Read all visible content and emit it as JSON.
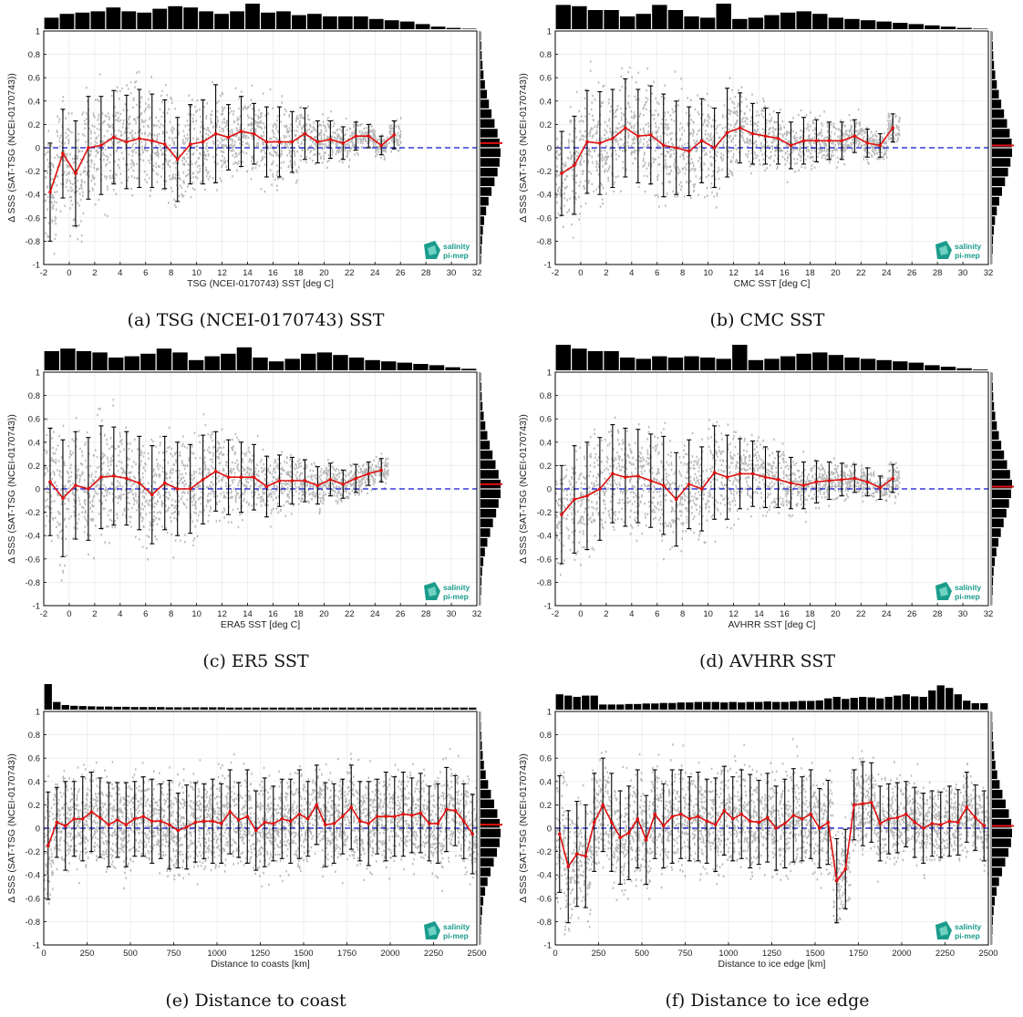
{
  "figure": {
    "logo": {
      "line1": "salinity",
      "line2": "pi-mep",
      "color": "#1a9c8c"
    },
    "ylabel": "Δ SSS (SAT-TSG (NCEI-0170743))",
    "ylim": [
      -1,
      1
    ],
    "yticks": [
      "-1",
      "-0.8",
      "-0.6",
      "-0.4",
      "-0.2",
      "0",
      "0.2",
      "0.4",
      "0.6",
      "0.8",
      "1"
    ],
    "colors": {
      "mean_line": "#e01010",
      "zero_line": "#1010d0",
      "error_bars": "#000000",
      "scatter": "#808080",
      "histogram": "#000000",
      "median_mark": "#e01010"
    }
  },
  "chart_data": [
    {
      "type": "scatter",
      "caption": "(a) TSG (NCEI-0170743) SST",
      "xlabel": "TSG (NCEI-0170743) SST [deg C]",
      "xlim": [
        -2,
        32
      ],
      "xticks": [
        "-2",
        "0",
        "2",
        "4",
        "6",
        "8",
        "10",
        "12",
        "14",
        "16",
        "18",
        "20",
        "22",
        "24",
        "26",
        "28",
        "30",
        "32"
      ],
      "ylabel": "Δ SSS (SAT-TSG (NCEI-0170743))",
      "ylim": [
        -1,
        1
      ],
      "x": [
        -1.5,
        -0.5,
        0.5,
        1.5,
        2.5,
        3.5,
        4.5,
        5.5,
        6.5,
        7.5,
        8.5,
        9.5,
        10.5,
        11.5,
        12.5,
        13.5,
        14.5,
        15.5,
        16.5,
        17.5,
        18.5,
        19.5,
        20.5,
        21.5,
        22.5,
        23.5,
        24.5,
        25.5
      ],
      "mean": [
        -0.38,
        -0.05,
        -0.22,
        0.0,
        0.02,
        0.09,
        0.05,
        0.08,
        0.06,
        0.03,
        -0.1,
        0.03,
        0.05,
        0.12,
        0.09,
        0.14,
        0.12,
        0.05,
        0.05,
        0.05,
        0.12,
        0.05,
        0.07,
        0.04,
        0.1,
        0.1,
        0.02,
        0.11
      ],
      "std": [
        0.42,
        0.38,
        0.45,
        0.44,
        0.42,
        0.4,
        0.4,
        0.42,
        0.4,
        0.38,
        0.36,
        0.34,
        0.36,
        0.42,
        0.28,
        0.3,
        0.26,
        0.3,
        0.3,
        0.26,
        0.22,
        0.18,
        0.16,
        0.14,
        0.12,
        0.1,
        0.08,
        0.12
      ],
      "hist_x": [
        0.45,
        0.6,
        0.65,
        0.7,
        0.85,
        0.7,
        0.65,
        0.8,
        0.9,
        0.85,
        0.7,
        0.6,
        0.7,
        1.0,
        0.65,
        0.7,
        0.55,
        0.6,
        0.5,
        0.5,
        0.5,
        0.4,
        0.35,
        0.3,
        0.2,
        0.1,
        0.05,
        0.02
      ],
      "hist_y": [
        0.02,
        0.04,
        0.06,
        0.1,
        0.15,
        0.22,
        0.32,
        0.42,
        0.55,
        0.7,
        0.85,
        0.95,
        1.0,
        0.95,
        0.85,
        0.7,
        0.55,
        0.4,
        0.28,
        0.18,
        0.12,
        0.08,
        0.05,
        0.03
      ],
      "median_mark": 0.04
    },
    {
      "type": "scatter",
      "caption": "(b) CMC SST",
      "xlabel": "CMC SST [deg C]",
      "xlim": [
        -2,
        32
      ],
      "xticks": [
        "-2",
        "0",
        "2",
        "4",
        "6",
        "8",
        "10",
        "12",
        "14",
        "16",
        "18",
        "20",
        "22",
        "24",
        "26",
        "28",
        "30",
        "32"
      ],
      "ylabel": "Δ SSS (SAT-TSG (NCEI-0170743))",
      "ylim": [
        -1,
        1
      ],
      "x": [
        -1.5,
        -0.5,
        0.5,
        1.5,
        2.5,
        3.5,
        4.5,
        5.5,
        6.5,
        7.5,
        8.5,
        9.5,
        10.5,
        11.5,
        12.5,
        13.5,
        14.5,
        15.5,
        16.5,
        17.5,
        18.5,
        19.5,
        20.5,
        21.5,
        22.5,
        23.5,
        24.5
      ],
      "mean": [
        -0.22,
        -0.15,
        0.05,
        0.04,
        0.08,
        0.17,
        0.1,
        0.11,
        0.02,
        0.0,
        -0.03,
        0.06,
        0.0,
        0.13,
        0.17,
        0.12,
        0.1,
        0.08,
        0.02,
        0.06,
        0.06,
        0.06,
        0.06,
        0.1,
        0.04,
        0.02,
        0.17
      ],
      "std": [
        0.36,
        0.42,
        0.44,
        0.44,
        0.42,
        0.42,
        0.4,
        0.42,
        0.44,
        0.4,
        0.38,
        0.36,
        0.34,
        0.38,
        0.3,
        0.26,
        0.24,
        0.22,
        0.2,
        0.2,
        0.18,
        0.16,
        0.16,
        0.14,
        0.12,
        0.1,
        0.12
      ],
      "hist_x": [
        0.95,
        0.9,
        0.75,
        0.75,
        0.5,
        0.6,
        0.95,
        0.75,
        0.5,
        0.45,
        1.0,
        0.4,
        0.45,
        0.55,
        0.65,
        0.7,
        0.6,
        0.45,
        0.4,
        0.35,
        0.3,
        0.25,
        0.2,
        0.15,
        0.1,
        0.05,
        0.02
      ],
      "hist_y": [
        0.02,
        0.04,
        0.06,
        0.1,
        0.16,
        0.24,
        0.34,
        0.46,
        0.6,
        0.75,
        0.88,
        0.98,
        1.0,
        0.92,
        0.8,
        0.65,
        0.5,
        0.36,
        0.24,
        0.15,
        0.09,
        0.05,
        0.03,
        0.01
      ],
      "median_mark": 0.02
    },
    {
      "type": "scatter",
      "caption": "(c) ER5 SST",
      "xlabel": "ERA5 SST [deg C]",
      "xlim": [
        -2,
        32
      ],
      "xticks": [
        "-2",
        "0",
        "2",
        "4",
        "6",
        "8",
        "10",
        "12",
        "14",
        "16",
        "18",
        "20",
        "22",
        "24",
        "26",
        "28",
        "30",
        "32"
      ],
      "ylabel": "Δ SSS (SAT-TSG (NCEI-0170743))",
      "ylim": [
        -1,
        1
      ],
      "x": [
        -1.5,
        -0.5,
        0.5,
        1.5,
        2.5,
        3.5,
        4.5,
        5.5,
        6.5,
        7.5,
        8.5,
        9.5,
        10.5,
        11.5,
        12.5,
        13.5,
        14.5,
        15.5,
        16.5,
        17.5,
        18.5,
        19.5,
        20.5,
        21.5,
        22.5,
        23.5,
        24.5
      ],
      "mean": [
        0.06,
        -0.08,
        0.03,
        0.0,
        0.1,
        0.11,
        0.09,
        0.05,
        -0.05,
        0.05,
        0.0,
        0.0,
        0.08,
        0.15,
        0.1,
        0.1,
        0.1,
        0.02,
        0.07,
        0.07,
        0.07,
        0.03,
        0.08,
        0.04,
        0.09,
        0.13,
        0.16
      ],
      "std": [
        0.46,
        0.5,
        0.46,
        0.44,
        0.44,
        0.42,
        0.4,
        0.4,
        0.42,
        0.4,
        0.4,
        0.38,
        0.38,
        0.34,
        0.32,
        0.3,
        0.28,
        0.26,
        0.22,
        0.2,
        0.18,
        0.16,
        0.14,
        0.12,
        0.12,
        0.1,
        0.1
      ],
      "hist_x": [
        0.75,
        0.85,
        0.75,
        0.7,
        0.5,
        0.55,
        0.65,
        0.85,
        0.7,
        0.4,
        0.55,
        0.65,
        0.9,
        0.5,
        0.35,
        0.45,
        0.65,
        0.7,
        0.6,
        0.5,
        0.4,
        0.35,
        0.3,
        0.25,
        0.2,
        0.12,
        0.06
      ],
      "hist_y": [
        0.02,
        0.04,
        0.06,
        0.1,
        0.16,
        0.24,
        0.34,
        0.46,
        0.6,
        0.75,
        0.9,
        1.0,
        1.0,
        0.9,
        0.78,
        0.62,
        0.48,
        0.34,
        0.22,
        0.14,
        0.08,
        0.05,
        0.03,
        0.01
      ],
      "median_mark": 0.04
    },
    {
      "type": "scatter",
      "caption": "(d) AVHRR SST",
      "xlabel": "AVHRR SST [deg C]",
      "xlim": [
        -2,
        32
      ],
      "xticks": [
        "-2",
        "0",
        "2",
        "4",
        "6",
        "8",
        "10",
        "12",
        "14",
        "16",
        "18",
        "20",
        "22",
        "24",
        "26",
        "28",
        "30",
        "32"
      ],
      "ylabel": "Δ SSS (SAT-TSG (NCEI-0170743))",
      "ylim": [
        -1,
        1
      ],
      "x": [
        -1.5,
        -0.5,
        0.5,
        1.5,
        2.5,
        3.5,
        4.5,
        5.5,
        6.5,
        7.5,
        8.5,
        9.5,
        10.5,
        11.5,
        12.5,
        13.5,
        14.5,
        15.5,
        16.5,
        17.5,
        18.5,
        19.5,
        20.5,
        21.5,
        22.5,
        23.5,
        24.5
      ],
      "mean": [
        -0.22,
        -0.09,
        -0.06,
        0.0,
        0.13,
        0.1,
        0.11,
        0.07,
        0.03,
        -0.09,
        0.04,
        0.0,
        0.14,
        0.1,
        0.13,
        0.13,
        0.1,
        0.08,
        0.05,
        0.03,
        0.06,
        0.07,
        0.08,
        0.09,
        0.06,
        0.01,
        0.09
      ],
      "std": [
        0.42,
        0.46,
        0.46,
        0.44,
        0.42,
        0.42,
        0.4,
        0.4,
        0.42,
        0.4,
        0.38,
        0.36,
        0.4,
        0.36,
        0.3,
        0.28,
        0.26,
        0.24,
        0.22,
        0.2,
        0.18,
        0.16,
        0.14,
        0.12,
        0.12,
        0.1,
        0.12
      ],
      "hist_x": [
        1.0,
        0.85,
        0.75,
        0.75,
        0.5,
        0.45,
        0.55,
        0.5,
        0.55,
        0.5,
        0.45,
        1.0,
        0.4,
        0.45,
        0.55,
        0.65,
        0.7,
        0.6,
        0.5,
        0.45,
        0.4,
        0.35,
        0.3,
        0.2,
        0.14,
        0.08,
        0.03
      ],
      "hist_y": [
        0.02,
        0.04,
        0.06,
        0.1,
        0.16,
        0.24,
        0.34,
        0.46,
        0.6,
        0.75,
        0.9,
        1.0,
        0.95,
        0.85,
        0.72,
        0.58,
        0.44,
        0.32,
        0.22,
        0.14,
        0.08,
        0.05,
        0.03,
        0.01
      ],
      "median_mark": 0.02
    },
    {
      "type": "scatter",
      "caption": "(e) Distance to coast",
      "xlabel": "Distance to coasts [km]",
      "xlim": [
        0,
        2500
      ],
      "xticks": [
        "0",
        "250",
        "500",
        "750",
        "1000",
        "1250",
        "1500",
        "1750",
        "2000",
        "2250",
        "2500"
      ],
      "ylabel": "Δ SSS (SAT-TSG (NCEI-0170743))",
      "ylim": [
        -1,
        1
      ],
      "x": [
        25,
        75,
        125,
        175,
        225,
        275,
        325,
        375,
        425,
        475,
        525,
        575,
        625,
        675,
        725,
        775,
        825,
        875,
        925,
        975,
        1025,
        1075,
        1125,
        1175,
        1225,
        1275,
        1325,
        1375,
        1425,
        1475,
        1525,
        1575,
        1625,
        1675,
        1725,
        1775,
        1825,
        1875,
        1925,
        1975,
        2025,
        2075,
        2125,
        2175,
        2225,
        2275,
        2325,
        2375,
        2425,
        2475
      ],
      "mean": [
        -0.15,
        0.05,
        0.02,
        0.08,
        0.08,
        0.14,
        0.09,
        0.03,
        0.07,
        0.03,
        0.08,
        0.1,
        0.06,
        0.06,
        0.03,
        -0.02,
        0.01,
        0.05,
        0.06,
        0.06,
        0.04,
        0.14,
        0.07,
        0.1,
        -0.02,
        0.05,
        0.04,
        0.08,
        0.06,
        0.12,
        0.08,
        0.2,
        0.03,
        0.04,
        0.1,
        0.18,
        0.06,
        0.04,
        0.1,
        0.1,
        0.1,
        0.12,
        0.11,
        0.13,
        0.04,
        0.04,
        0.16,
        0.15,
        0.06,
        -0.05
      ],
      "std": [
        0.46,
        0.3,
        0.38,
        0.32,
        0.36,
        0.34,
        0.34,
        0.36,
        0.32,
        0.36,
        0.32,
        0.34,
        0.36,
        0.32,
        0.38,
        0.32,
        0.36,
        0.34,
        0.32,
        0.36,
        0.34,
        0.36,
        0.32,
        0.4,
        0.34,
        0.38,
        0.32,
        0.34,
        0.36,
        0.38,
        0.32,
        0.34,
        0.36,
        0.34,
        0.32,
        0.36,
        0.34,
        0.36,
        0.32,
        0.38,
        0.34,
        0.36,
        0.32,
        0.34,
        0.32,
        0.34,
        0.36,
        0.3,
        0.32,
        0.34
      ],
      "hist_x": [
        1.0,
        0.3,
        0.18,
        0.15,
        0.14,
        0.13,
        0.12,
        0.12,
        0.11,
        0.11,
        0.1,
        0.1,
        0.1,
        0.1,
        0.09,
        0.09,
        0.09,
        0.09,
        0.09,
        0.09,
        0.09,
        0.08,
        0.08,
        0.08,
        0.08,
        0.08,
        0.08,
        0.08,
        0.08,
        0.08,
        0.08,
        0.08,
        0.08,
        0.08,
        0.08,
        0.08,
        0.08,
        0.08,
        0.08,
        0.08,
        0.08,
        0.08,
        0.08,
        0.08,
        0.08,
        0.08,
        0.08,
        0.08,
        0.08,
        0.08
      ],
      "hist_y": [
        0.01,
        0.02,
        0.04,
        0.07,
        0.11,
        0.17,
        0.26,
        0.38,
        0.52,
        0.68,
        0.84,
        0.96,
        1.0,
        0.95,
        0.82,
        0.66,
        0.5,
        0.35,
        0.23,
        0.14,
        0.08,
        0.04,
        0.02,
        0.01
      ],
      "median_mark": 0.03
    },
    {
      "type": "scatter",
      "caption": "(f) Distance to ice edge",
      "xlabel": "Distance to ice edge [km]",
      "xlim": [
        0,
        2500
      ],
      "xticks": [
        "0",
        "250",
        "500",
        "750",
        "1000",
        "1250",
        "1500",
        "1750",
        "2000",
        "2250",
        "2500"
      ],
      "ylabel": "Δ SSS (SAT-TSG (NCEI-0170743))",
      "ylim": [
        -1,
        1
      ],
      "x": [
        25,
        75,
        125,
        175,
        225,
        275,
        325,
        375,
        425,
        475,
        525,
        575,
        625,
        675,
        725,
        775,
        825,
        875,
        925,
        975,
        1025,
        1075,
        1125,
        1175,
        1225,
        1275,
        1325,
        1375,
        1425,
        1475,
        1525,
        1575,
        1625,
        1675,
        1725,
        1775,
        1825,
        1875,
        1925,
        1975,
        2025,
        2075,
        2125,
        2175,
        2225,
        2275,
        2325,
        2375,
        2425,
        2475
      ],
      "mean": [
        -0.05,
        -0.33,
        -0.22,
        -0.24,
        0.05,
        0.2,
        0.05,
        -0.08,
        -0.04,
        0.08,
        -0.1,
        0.12,
        0.02,
        0.1,
        0.12,
        0.08,
        0.1,
        0.06,
        0.03,
        0.15,
        0.08,
        0.12,
        0.06,
        0.05,
        0.09,
        0.0,
        0.04,
        0.11,
        0.08,
        0.12,
        0.0,
        0.05,
        -0.45,
        -0.35,
        0.2,
        0.21,
        0.22,
        0.04,
        0.08,
        0.09,
        0.12,
        0.05,
        0.0,
        0.04,
        0.03,
        0.06,
        0.05,
        0.18,
        0.09,
        0.02
      ],
      "std": [
        0.5,
        0.48,
        0.45,
        0.44,
        0.42,
        0.4,
        0.42,
        0.4,
        0.4,
        0.42,
        0.38,
        0.38,
        0.36,
        0.4,
        0.38,
        0.36,
        0.38,
        0.36,
        0.4,
        0.38,
        0.36,
        0.38,
        0.4,
        0.36,
        0.38,
        0.36,
        0.38,
        0.4,
        0.36,
        0.38,
        0.34,
        0.36,
        0.36,
        0.34,
        0.3,
        0.36,
        0.34,
        0.32,
        0.3,
        0.3,
        0.28,
        0.3,
        0.3,
        0.28,
        0.28,
        0.3,
        0.28,
        0.3,
        0.28,
        0.3
      ],
      "hist_x": [
        0.6,
        0.55,
        0.5,
        0.55,
        0.55,
        0.2,
        0.2,
        0.2,
        0.22,
        0.22,
        0.24,
        0.24,
        0.26,
        0.26,
        0.28,
        0.28,
        0.3,
        0.3,
        0.3,
        0.28,
        0.3,
        0.28,
        0.3,
        0.3,
        0.32,
        0.3,
        0.3,
        0.32,
        0.34,
        0.34,
        0.36,
        0.44,
        0.5,
        0.42,
        0.46,
        0.5,
        0.48,
        0.44,
        0.5,
        0.55,
        0.6,
        0.52,
        0.5,
        0.75,
        0.95,
        0.85,
        0.6,
        0.35,
        0.25,
        0.25
      ],
      "hist_y": [
        0.01,
        0.02,
        0.04,
        0.07,
        0.11,
        0.17,
        0.26,
        0.38,
        0.52,
        0.68,
        0.84,
        0.96,
        1.0,
        0.95,
        0.82,
        0.66,
        0.5,
        0.35,
        0.23,
        0.14,
        0.08,
        0.04,
        0.02,
        0.01
      ],
      "median_mark": 0.02
    }
  ]
}
